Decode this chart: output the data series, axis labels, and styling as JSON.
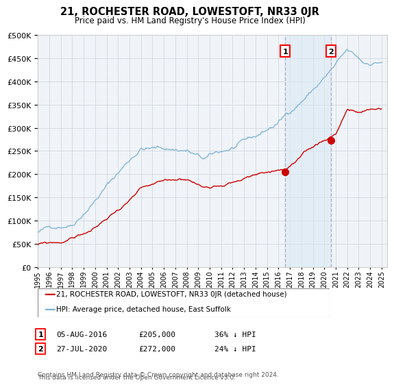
{
  "title": "21, ROCHESTER ROAD, LOWESTOFT, NR33 0JR",
  "subtitle": "Price paid vs. HM Land Registry's House Price Index (HPI)",
  "ylim": [
    0,
    500000
  ],
  "xlim_start": 1995.0,
  "xlim_end": 2025.5,
  "sale1_year": 2016.587,
  "sale1_price": 205000,
  "sale1_label": "1",
  "sale2_year": 2020.567,
  "sale2_price": 272000,
  "sale2_label": "2",
  "legend_red": "21, ROCHESTER ROAD, LOWESTOFT, NR33 0JR (detached house)",
  "legend_blue": "HPI: Average price, detached house, East Suffolk",
  "sale1_date": "05-AUG-2016",
  "sale1_amount": "£205,000",
  "sale1_hpi": "36% ↓ HPI",
  "sale2_date": "27-JUL-2020",
  "sale2_amount": "£272,000",
  "sale2_hpi": "24% ↓ HPI",
  "footnote_line1": "Contains HM Land Registry data © Crown copyright and database right 2024.",
  "footnote_line2": "This data is licensed under the Open Government Licence v3.0.",
  "red_color": "#cc0000",
  "blue_color": "#7ab0d4",
  "vline_color": "#aaaacc",
  "background_plot": "#f0f4f8",
  "background_fig": "#ffffff",
  "shaded_color": "#d8e8f4",
  "grid_color": "#d0d8e0",
  "marker_y": 465000
}
